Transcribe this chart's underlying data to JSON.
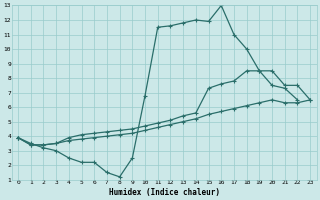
{
  "xlabel": "Humidex (Indice chaleur)",
  "bg_color": "#cce8e8",
  "grid_color": "#99cccc",
  "line_color": "#2a6e6a",
  "xlim": [
    -0.5,
    23.5
  ],
  "ylim": [
    1,
    13
  ],
  "xticks": [
    0,
    1,
    2,
    3,
    4,
    5,
    6,
    7,
    8,
    9,
    10,
    11,
    12,
    13,
    14,
    15,
    16,
    17,
    18,
    19,
    20,
    21,
    22,
    23
  ],
  "yticks": [
    1,
    2,
    3,
    4,
    5,
    6,
    7,
    8,
    9,
    10,
    11,
    12,
    13
  ],
  "line1_x": [
    0,
    1,
    2,
    3,
    4,
    5,
    6,
    7,
    8,
    9,
    10,
    11,
    12,
    13,
    14,
    15,
    16,
    17,
    18,
    19,
    20,
    21,
    22
  ],
  "line1_y": [
    3.9,
    3.5,
    3.2,
    3.0,
    2.5,
    2.2,
    2.2,
    1.5,
    1.2,
    2.5,
    6.8,
    11.5,
    11.6,
    11.8,
    12.0,
    11.9,
    13.0,
    11.0,
    10.0,
    8.5,
    7.5,
    7.3,
    6.5
  ],
  "line2_x": [
    0,
    1,
    2,
    3,
    4,
    5,
    6,
    7,
    8,
    9,
    10,
    11,
    12,
    13,
    14,
    15,
    16,
    17,
    18,
    19,
    20,
    21,
    22,
    23
  ],
  "line2_y": [
    3.9,
    3.4,
    3.4,
    3.5,
    3.7,
    3.8,
    3.9,
    4.0,
    4.1,
    4.2,
    4.4,
    4.6,
    4.8,
    5.0,
    5.2,
    5.5,
    5.7,
    5.9,
    6.1,
    6.3,
    6.5,
    6.3,
    6.3,
    6.5
  ],
  "line3_x": [
    0,
    1,
    2,
    3,
    4,
    5,
    6,
    7,
    8,
    9,
    10,
    11,
    12,
    13,
    14,
    15,
    16,
    17,
    18,
    19,
    20,
    21,
    22,
    23
  ],
  "line3_y": [
    3.9,
    3.4,
    3.4,
    3.5,
    3.9,
    4.1,
    4.2,
    4.3,
    4.4,
    4.5,
    4.7,
    4.9,
    5.1,
    5.4,
    5.6,
    7.3,
    7.6,
    7.8,
    8.5,
    8.5,
    8.5,
    7.5,
    7.5,
    6.5
  ]
}
